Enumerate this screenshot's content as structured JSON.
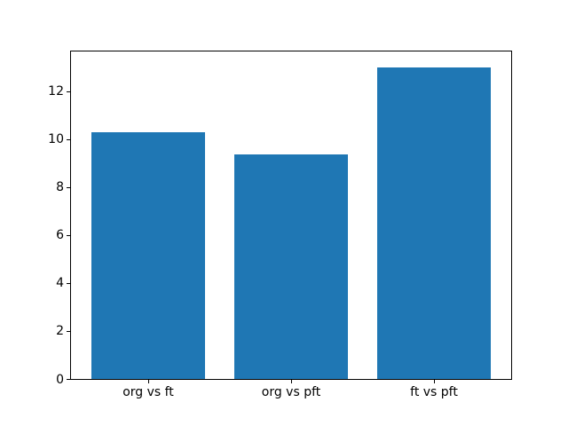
{
  "chart_data": {
    "type": "bar",
    "title": "",
    "xlabel": "",
    "ylabel": "",
    "categories": [
      "org vs ft",
      "org vs pft",
      "ft vs pft"
    ],
    "values": [
      10.27,
      9.35,
      13.0
    ],
    "bar_positions": [
      0,
      1,
      2
    ],
    "bar_width": 0.8,
    "bar_color": "#1f77b4",
    "xlim": [
      -0.54,
      2.54
    ],
    "ylim": [
      0,
      13.65
    ],
    "yticks": [
      0,
      2,
      4,
      6,
      8,
      10,
      12
    ],
    "grid": false,
    "legend": null,
    "background_color": "#ffffff",
    "axis_color": "#000000"
  }
}
